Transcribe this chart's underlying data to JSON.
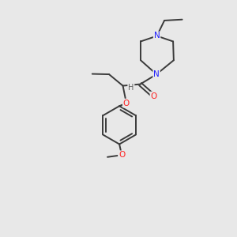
{
  "background_color": "#e8e8e8",
  "bond_color": "#3a3a3a",
  "n_color": "#2020ff",
  "o_color": "#ff2020",
  "h_color": "#606060",
  "figsize": [
    3.0,
    3.0
  ],
  "dpi": 100,
  "xlim": [
    0,
    10
  ],
  "ylim": [
    0,
    10
  ]
}
